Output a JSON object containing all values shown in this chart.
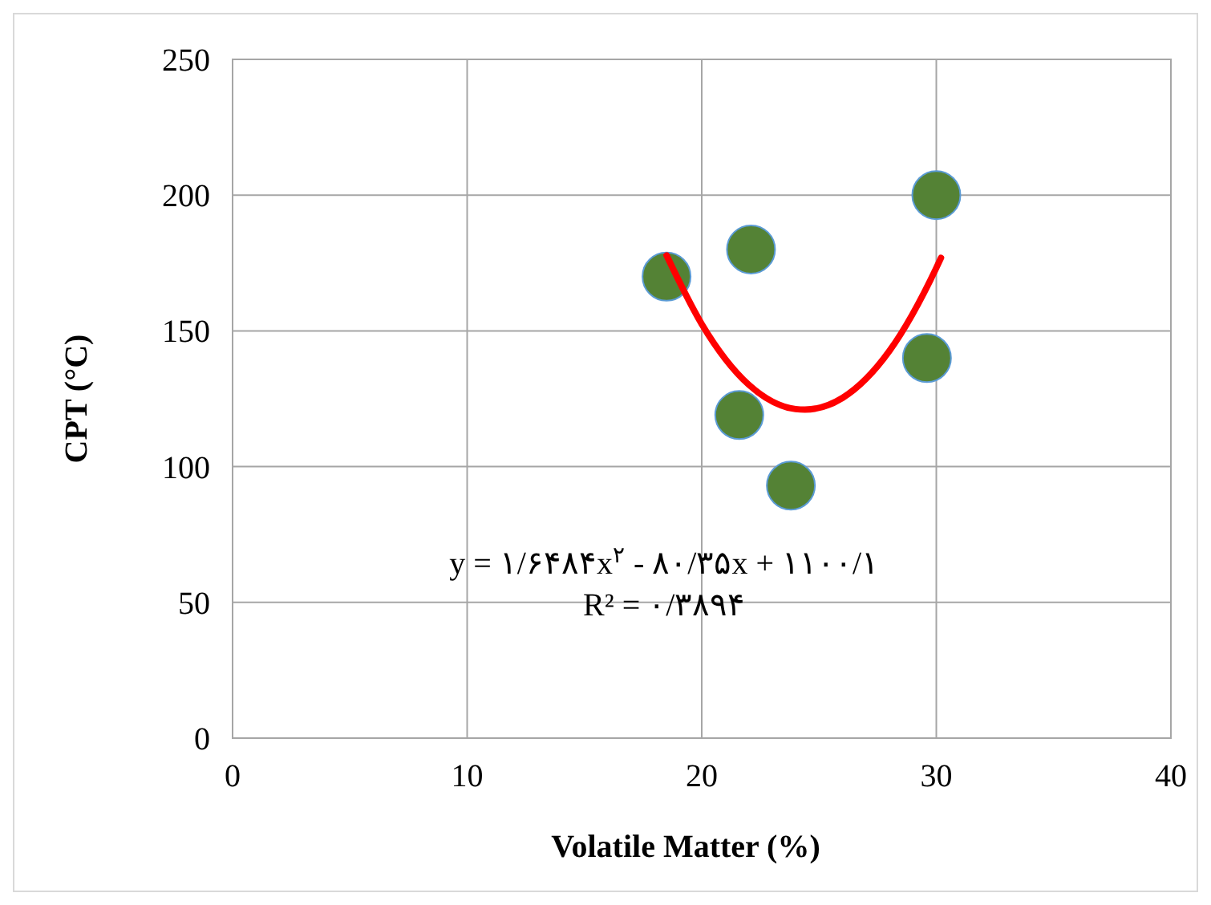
{
  "chart_data": {
    "type": "scatter",
    "xlabel": "Volatile Matter (%)",
    "ylabel": "CPT (°C)",
    "xlim": [
      0,
      40
    ],
    "xticks": [
      0,
      10,
      20,
      30,
      40
    ],
    "ylim": [
      0,
      250
    ],
    "yticks": [
      0,
      50,
      100,
      150,
      200,
      250
    ],
    "grid": true,
    "series": [
      {
        "color": "#548235",
        "marker": "circle",
        "x": [
          18.5,
          22.1,
          21.6,
          23.8,
          30.0,
          29.6
        ],
        "values": [
          170,
          180,
          119,
          93,
          200,
          140
        ]
      },
      {
        "type": "line",
        "color": "#ff0000",
        "marker": "none",
        "line_style": "solid",
        "x": [
          18.5,
          20,
          22,
          24,
          24.4,
          26,
          28,
          30,
          30.2
        ],
        "values": [
          177.8,
          152.5,
          130.2,
          121.2,
          121.0,
          125.3,
          142.6,
          173.2,
          176.9
        ]
      }
    ],
    "annotations": [
      "y = ۱/۶۴۸۴x$^{۲}$ - ۸۰/۳۵x + ۱۱۰۰/۱",
      "R² = ۰/۳۸۹۴"
    ]
  }
}
